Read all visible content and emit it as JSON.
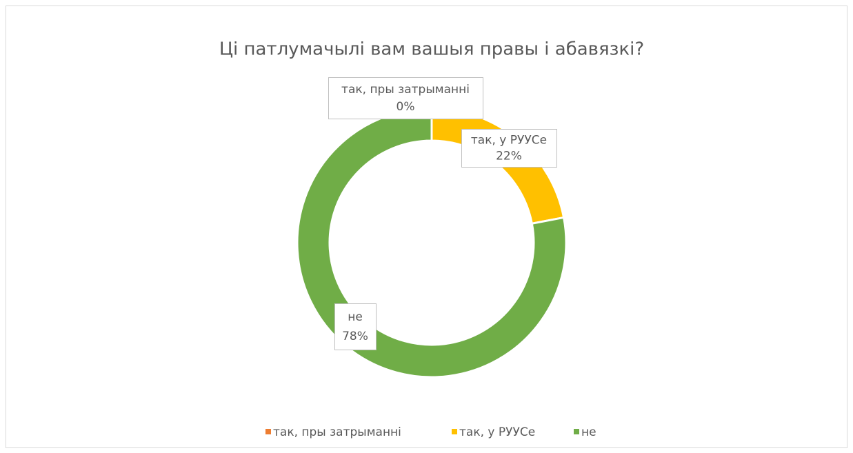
{
  "chart_data": {
    "type": "donut",
    "title": "Ці патлумачылі вам вашыя правы і абавязкі?",
    "categories": [
      "так, пры затрыманні",
      "так, у РУУСе",
      "не"
    ],
    "values": [
      0,
      22,
      78
    ],
    "value_labels": [
      "0%",
      "22%",
      "78%"
    ],
    "colors": [
      "#ed7d31",
      "#ffc000",
      "#70ad47"
    ],
    "legend": "bottom"
  }
}
